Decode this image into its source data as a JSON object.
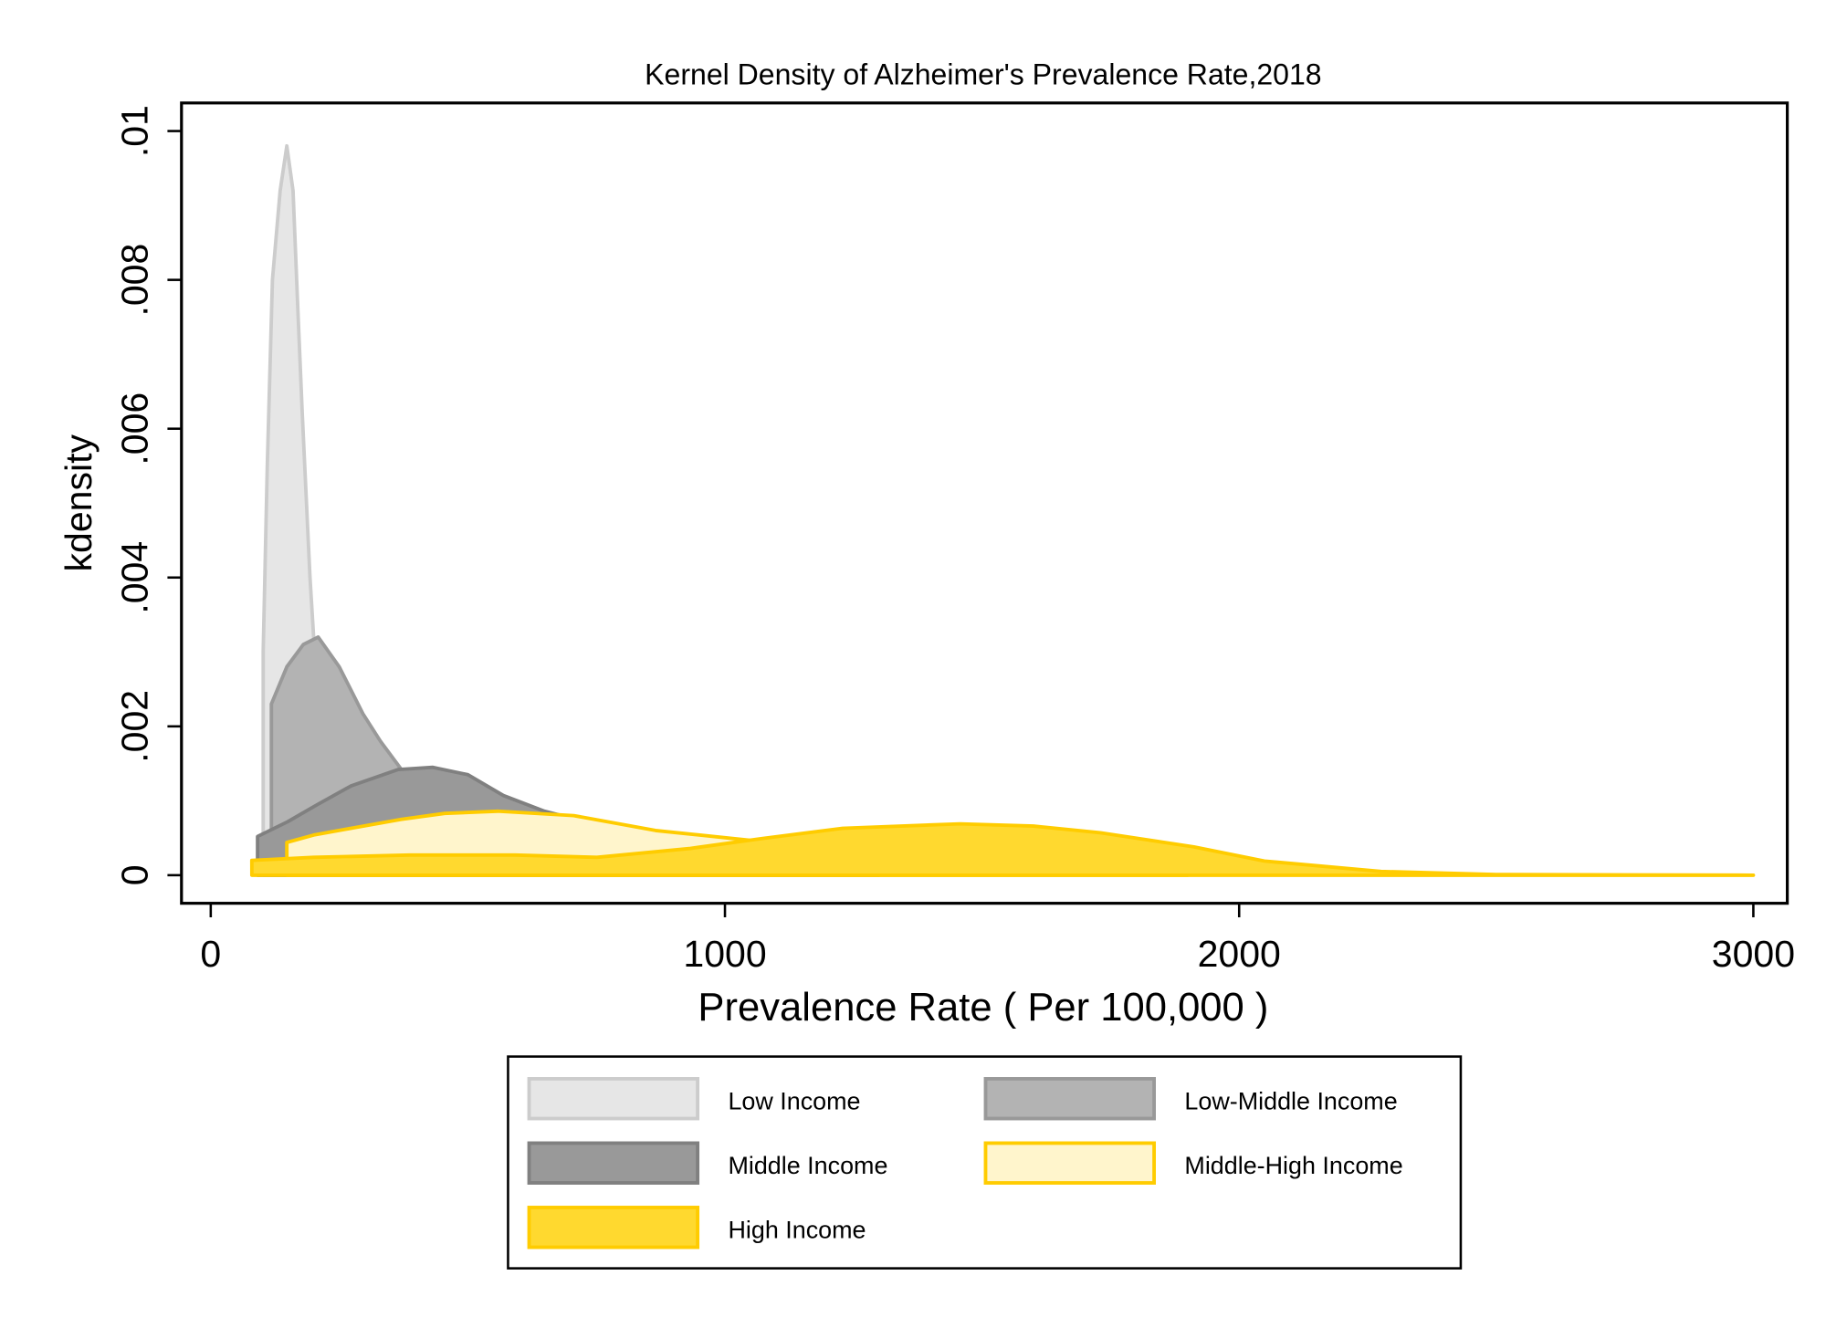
{
  "chart_data": {
    "type": "area",
    "title": "Kernel Density of Alzheimer's Prevalence Rate,2018",
    "xlabel": "Prevalence Rate ( Per 100,000 )",
    "ylabel": "kdensity",
    "xlim": [
      0,
      3000
    ],
    "ylim": [
      0,
      0.01
    ],
    "xticks": [
      0,
      1000,
      2000,
      3000
    ],
    "xtick_labels": [
      "0",
      "1000",
      "2000",
      "3000"
    ],
    "yticks": [
      0,
      0.002,
      0.004,
      0.006,
      0.008,
      0.01
    ],
    "ytick_labels": [
      "0",
      ".002",
      ".004",
      ".006",
      ".008",
      ".01"
    ],
    "grid": false,
    "legend_position": "bottom",
    "series": [
      {
        "name": "Low Income",
        "fill": "#e6e6e6",
        "stroke": "#cccccc",
        "x": [
          102,
          110,
          120,
          135,
          148,
          160,
          170,
          178,
          193,
          200,
          230,
          280,
          340
        ],
        "y": [
          0.003,
          0.0055,
          0.008,
          0.0092,
          0.0098,
          0.0092,
          0.0075,
          0.0062,
          0.004,
          0.0032,
          0.0018,
          0.0006,
          0.0
        ]
      },
      {
        "name": "Low-Middle Income",
        "fill": "#b3b3b3",
        "stroke": "#999999",
        "x": [
          118,
          148,
          180,
          209,
          250,
          296,
          330,
          375,
          420,
          500,
          560,
          615
        ],
        "y": [
          0.0023,
          0.0028,
          0.0031,
          0.0032,
          0.0028,
          0.00217,
          0.0018,
          0.00138,
          0.001,
          0.0006,
          0.0003,
          0.0
        ]
      },
      {
        "name": "Middle Income",
        "fill": "#999999",
        "stroke": "#808080",
        "x": [
          91,
          150,
          205,
          273,
          364,
          432,
          500,
          569,
          649,
          797,
          1000,
          1150,
          1300
        ],
        "y": [
          0.00052,
          0.00072,
          0.00094,
          0.0012,
          0.00142,
          0.00145,
          0.00135,
          0.00107,
          0.00086,
          0.0006,
          0.0003,
          0.0001,
          0.0
        ]
      },
      {
        "name": "Middle-High Income",
        "fill": "#fff5cc",
        "stroke": "#ffcc00",
        "x": [
          148,
          200,
          273,
          370,
          455,
          558,
          706,
          865,
          1047,
          1184,
          1411,
          1650,
          1900
        ],
        "y": [
          0.00044,
          0.00054,
          0.00063,
          0.00075,
          0.00083,
          0.00086,
          0.0008,
          0.0006,
          0.00047,
          0.0003,
          0.00015,
          5e-05,
          0.0
        ]
      },
      {
        "name": "High Income",
        "fill": "#ffd92f",
        "stroke": "#ffcc00",
        "x": [
          80,
          200,
          387,
          592,
          751,
          933,
          1070,
          1229,
          1457,
          1600,
          1730,
          1912,
          2049,
          2276,
          2500,
          3000
        ],
        "y": [
          0.0002,
          0.00024,
          0.00027,
          0.00027,
          0.00024,
          0.00036,
          0.00049,
          0.00063,
          0.00069,
          0.00066,
          0.00057,
          0.00038,
          0.00019,
          5e-05,
          1e-05,
          0.0
        ]
      }
    ]
  }
}
